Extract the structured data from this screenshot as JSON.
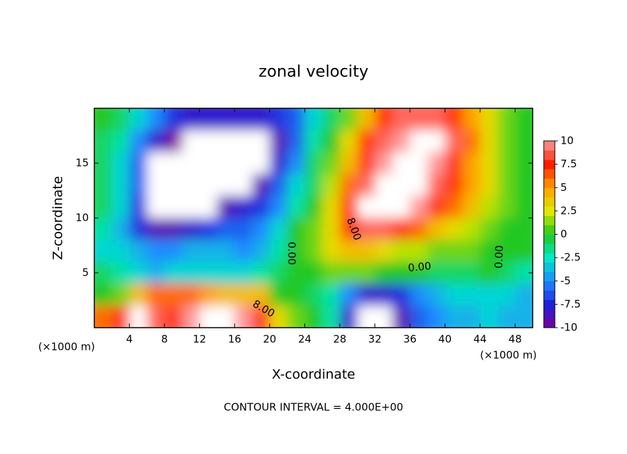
{
  "chart_data": {
    "type": "contour",
    "title": "zonal velocity",
    "x_label": "X-coordinate",
    "y_label": "Z-coordinate",
    "x_unit": "(×1000 m)",
    "y_unit": "(×1000 m)",
    "footer": "CONTOUR INTERVAL = 4.000E+00",
    "xlim": [
      0,
      50
    ],
    "xticks": [
      4,
      8,
      12,
      16,
      20,
      24,
      28,
      32,
      36,
      40,
      44,
      48
    ],
    "ylim": [
      0,
      20
    ],
    "yticks": [
      5,
      10,
      15
    ],
    "x": [
      1,
      3,
      5,
      7,
      9,
      11,
      13,
      15,
      17,
      19,
      21,
      23,
      25,
      27,
      29,
      31,
      33,
      35,
      37,
      39,
      41,
      43,
      45,
      47,
      49
    ],
    "z": [
      19,
      17,
      15,
      13,
      11,
      9,
      7,
      5,
      3,
      1
    ],
    "values": [
      [
        0,
        -1,
        -3,
        -5,
        -7,
        -8,
        -8,
        -8,
        -8,
        -8,
        -7,
        -6,
        -3,
        -1,
        1,
        4,
        7,
        9,
        9,
        9,
        7,
        5,
        3,
        1,
        0
      ],
      [
        -1,
        -2,
        -5,
        -8,
        -10,
        -12,
        -12,
        -12,
        -12,
        -12,
        -9,
        -6,
        -2,
        0,
        3,
        7,
        9,
        10,
        12,
        12,
        9,
        6,
        3,
        1,
        0
      ],
      [
        -1,
        -3,
        -6,
        -12,
        -12,
        -12,
        -12,
        -12,
        -12,
        -11,
        -8,
        -5,
        -1,
        1,
        4,
        8,
        10,
        12,
        12,
        10,
        8,
        5,
        3,
        1,
        0
      ],
      [
        -1,
        -3,
        -6,
        -12,
        -12,
        -12,
        -12,
        -12,
        -11,
        -9,
        -6,
        -3,
        -1,
        2,
        6,
        9,
        12,
        12,
        12,
        9,
        7,
        5,
        3,
        1,
        0
      ],
      [
        -1,
        -3,
        -7,
        -12,
        -12,
        -12,
        -11,
        -9,
        -8,
        -7,
        -5,
        -2,
        0,
        3,
        7,
        12,
        12,
        12,
        10,
        8,
        6,
        4,
        2,
        1,
        0
      ],
      [
        -2,
        -4,
        -7,
        -9,
        -9,
        -8,
        -7,
        -6,
        -6,
        -5,
        -3,
        0,
        1,
        3,
        7,
        9,
        9,
        8,
        6,
        4,
        3,
        2,
        1,
        0,
        0
      ],
      [
        -3,
        -3,
        -4,
        -5,
        -5,
        -4,
        -4,
        -4,
        -5,
        -4,
        -2,
        0,
        1,
        3,
        4,
        4,
        3,
        2,
        2,
        1,
        1,
        1,
        0,
        0,
        0
      ],
      [
        -1,
        -2,
        -3,
        -4,
        -3,
        -3,
        -3,
        -3,
        -3,
        -2,
        -1,
        0,
        0,
        1,
        1,
        1,
        0,
        0,
        0,
        -1,
        -1,
        -1,
        0,
        -1,
        -2
      ],
      [
        0,
        1,
        4,
        6,
        6,
        6,
        5,
        4,
        4,
        4,
        0,
        0,
        -1,
        -2,
        -5,
        -8,
        -8,
        -7,
        -5,
        -4,
        -3,
        -3,
        -3,
        -3,
        -4
      ],
      [
        6,
        8,
        12,
        9,
        8,
        10,
        12,
        12,
        10,
        8,
        3,
        1,
        0,
        -2,
        -8,
        -12,
        -12,
        -9,
        -6,
        -5,
        -4,
        -4,
        -3,
        -4,
        -4
      ]
    ],
    "cbar_ticks": [
      10,
      7.5,
      5,
      2.5,
      0,
      -2.5,
      -5,
      -7.5,
      -10
    ],
    "cbar_colors": [
      "#ff9a9a",
      "#ff1e00",
      "#ffa000",
      "#e0e800",
      "#20c820",
      "#00e8c8",
      "#1e8cff",
      "#2020d8",
      "#7a00a0"
    ],
    "out_of_range_color": "#ffffff",
    "contour_labels": [
      "8.00",
      "0.00",
      "0.00",
      "0.00",
      "8.00"
    ]
  }
}
